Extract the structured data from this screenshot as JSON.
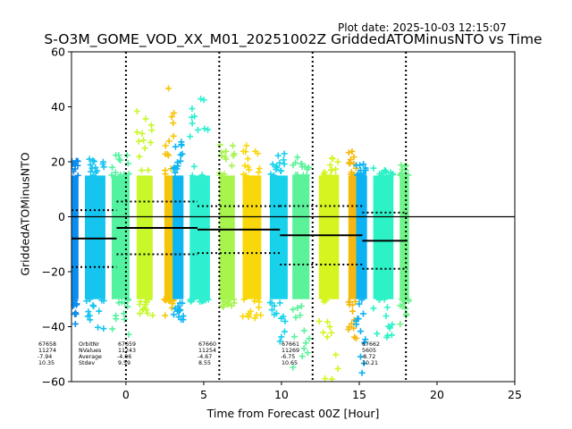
{
  "plot_date": "Plot date: 2025-10-03 12:15:07",
  "chart_data": {
    "type": "scatter",
    "title": "S-O3M_GOME_VOD_XX_M01_20251002Z GriddedATOMinusNTO vs Time",
    "xlabel": "Time from Forecast 00Z [Hour]",
    "ylabel": "GriddedATOMinusNTO",
    "xlim": [
      -3.5,
      25
    ],
    "ylim": [
      -60,
      60
    ],
    "xticks": [
      0,
      5,
      10,
      15,
      20,
      25
    ],
    "yticks": [
      -60,
      -40,
      -20,
      0,
      20,
      40,
      60
    ],
    "zero_line": 0,
    "forecast_markers": [
      0,
      6,
      12,
      18
    ],
    "marker": "+",
    "bands": [
      {
        "x": [
          -3.5,
          -3.05
        ],
        "ymin": -40,
        "ymax": 21,
        "color": "#0a8cf0"
      },
      {
        "x": [
          -2.64,
          -1.32
        ],
        "ymin": -43,
        "ymax": 21,
        "color": "#16c4f0"
      },
      {
        "x": [
          -0.92,
          0.23
        ],
        "ymin": -43,
        "ymax": 24,
        "color": "#52f2a0"
      },
      {
        "x": [
          0.69,
          1.72
        ],
        "ymin": -36,
        "ymax": 40,
        "color": "#c8f82a"
      },
      {
        "x": [
          2.47,
          3.1
        ],
        "ymin": -36,
        "ymax": 47,
        "color": "#f6c408"
      },
      {
        "x": [
          3.0,
          3.7
        ],
        "ymin": -38,
        "ymax": 28,
        "color": "#0cb6f2"
      },
      {
        "x": [
          4.1,
          5.4
        ],
        "ymin": -31,
        "ymax": 45,
        "color": "#2ef0d0"
      },
      {
        "x": [
          6.0,
          7.0
        ],
        "ymin": -33,
        "ymax": 27,
        "color": "#a6f44c"
      },
      {
        "x": [
          7.5,
          8.7
        ],
        "ymin": -39,
        "ymax": 26,
        "color": "#f8d80a"
      },
      {
        "x": [
          9.25,
          10.4
        ],
        "ymin": -47,
        "ymax": 25,
        "color": "#18d2ec"
      },
      {
        "x": [
          10.7,
          11.8
        ],
        "ymin": -55,
        "ymax": 22,
        "color": "#5cf29a"
      },
      {
        "x": [
          12.4,
          13.7
        ],
        "ymin": -60,
        "ymax": 23,
        "color": "#d6f420"
      },
      {
        "x": [
          14.3,
          14.8
        ],
        "ymin": -46,
        "ymax": 24,
        "color": "#f6b80c"
      },
      {
        "x": [
          14.8,
          15.5
        ],
        "ymin": -57,
        "ymax": 20,
        "color": "#0cb2f2"
      },
      {
        "x": [
          15.9,
          17.2
        ],
        "ymin": -45,
        "ymax": 18,
        "color": "#2cf2c6"
      },
      {
        "x": [
          17.6,
          18.2
        ],
        "ymin": -40,
        "ymax": 19,
        "color": "#6ef48a"
      }
    ],
    "orbits": [
      {
        "orbit": "67658",
        "nvalues": "11274",
        "average": "-7.94",
        "stdev": "10.35",
        "x": [
          -3.5,
          -0.6
        ],
        "mean": -7.94,
        "std": 10.35
      },
      {
        "orbit": "67659",
        "nvalues": "11243",
        "average": "-4.06",
        "stdev": "9.59",
        "x": [
          -0.6,
          4.6
        ],
        "mean": -4.06,
        "std": 9.59
      },
      {
        "orbit": "67660",
        "nvalues": "11254",
        "average": "-4.67",
        "stdev": "8.55",
        "x": [
          4.6,
          9.9
        ],
        "mean": -4.67,
        "std": 8.55
      },
      {
        "orbit": "67661",
        "nvalues": "11269",
        "average": "-6.75",
        "stdev": "10.65",
        "x": [
          9.9,
          15.2
        ],
        "mean": -6.75,
        "std": 10.65
      },
      {
        "orbit": "67662",
        "nvalues": "5605",
        "average": "-8.72",
        "stdev": "10.21",
        "x": [
          15.2,
          18.1
        ],
        "mean": -8.72,
        "std": 10.21
      }
    ],
    "stat_labels": [
      "OrbitNr",
      "NValues",
      "Average",
      "Stdev"
    ]
  }
}
